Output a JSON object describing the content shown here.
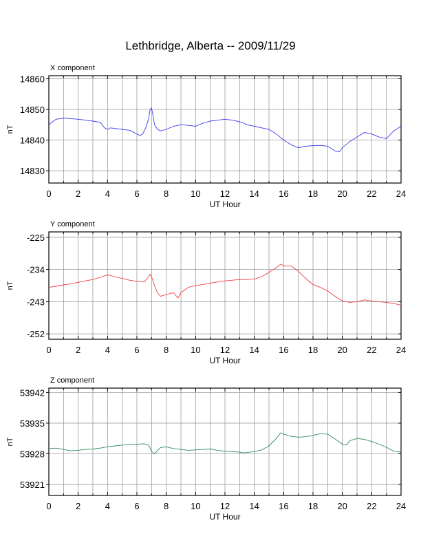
{
  "figure": {
    "title": "Lethbridge, Alberta -- 2009/11/29"
  },
  "chart_data": [
    {
      "type": "line",
      "panel_label": "X component",
      "xlabel": "UT Hour",
      "ylabel": "nT",
      "xlim": [
        0,
        24
      ],
      "ylim": [
        14826,
        14861
      ],
      "x_ticks": [
        0,
        2,
        4,
        6,
        8,
        10,
        12,
        14,
        16,
        18,
        20,
        22,
        24
      ],
      "y_ticks": [
        14830,
        14840,
        14850,
        14860
      ],
      "grid": true,
      "color": "#3b3bef",
      "series": [
        {
          "x": [
            0,
            0.25,
            0.5,
            0.75,
            1,
            1.5,
            2,
            2.5,
            3,
            3.5,
            3.8,
            4,
            4.2,
            4.5,
            5,
            5.5,
            5.8,
            6,
            6.2,
            6.4,
            6.6,
            6.8,
            6.9,
            7,
            7.1,
            7.2,
            7.4,
            7.6,
            8,
            8.5,
            9,
            9.5,
            10,
            10.5,
            11,
            11.5,
            12,
            12.5,
            13,
            13.3,
            13.5,
            14,
            14.5,
            15,
            15.5,
            16,
            16.5,
            17,
            17.5,
            18,
            18.5,
            19,
            19.5,
            19.8,
            20,
            20.5,
            21,
            21.5,
            22,
            22.5,
            23,
            23.5,
            24
          ],
          "y": [
            14845,
            14846,
            14846.8,
            14847,
            14847.2,
            14847,
            14846.8,
            14846.5,
            14846.2,
            14845.8,
            14844,
            14843.5,
            14844,
            14843.8,
            14843.5,
            14843.2,
            14842.5,
            14842,
            14841.5,
            14842,
            14844,
            14847,
            14850,
            14850.5,
            14848,
            14845,
            14843.5,
            14843,
            14843.5,
            14844.5,
            14845,
            14844.8,
            14844.5,
            14845.5,
            14846.2,
            14846.5,
            14846.8,
            14846.5,
            14846,
            14845.5,
            14845,
            14844.5,
            14844,
            14843.5,
            14842,
            14840,
            14838.5,
            14837.5,
            14838,
            14838.2,
            14838.3,
            14838,
            14836.5,
            14836.2,
            14837.5,
            14839.5,
            14841,
            14842.5,
            14842,
            14841,
            14840.5,
            14843,
            14844.5
          ]
        }
      ]
    },
    {
      "type": "line",
      "panel_label": "Y component",
      "xlabel": "UT Hour",
      "ylabel": "nT",
      "xlim": [
        0,
        24
      ],
      "ylim": [
        -253.5,
        -223.5
      ],
      "x_ticks": [
        0,
        2,
        4,
        6,
        8,
        10,
        12,
        14,
        16,
        18,
        20,
        22,
        24
      ],
      "y_ticks": [
        -225,
        -234,
        -243,
        -252
      ],
      "grid": true,
      "color": "#ef3b3b",
      "series": [
        {
          "x": [
            0,
            0.5,
            1,
            1.5,
            2,
            2.5,
            3,
            3.5,
            4,
            4.5,
            5,
            5.5,
            6,
            6.5,
            6.8,
            6.9,
            7,
            7.2,
            7.4,
            7.6,
            8,
            8.5,
            8.8,
            9,
            9.5,
            10,
            10.5,
            11,
            11.5,
            12,
            12.5,
            13,
            13.5,
            14,
            14.5,
            15,
            15.5,
            15.8,
            16,
            16.5,
            17,
            17.5,
            18,
            18.5,
            19,
            19.5,
            20,
            20.5,
            21,
            21.5,
            22,
            22.5,
            23,
            23.5,
            24
          ],
          "y": [
            -239,
            -238.7,
            -238.3,
            -238,
            -237.6,
            -237.2,
            -236.8,
            -236.2,
            -235.5,
            -236,
            -236.5,
            -237,
            -237.3,
            -237.5,
            -236,
            -235.3,
            -236,
            -238.5,
            -240.5,
            -241.5,
            -241,
            -240.5,
            -242,
            -240.5,
            -239,
            -238.5,
            -238.2,
            -237.8,
            -237.5,
            -237.2,
            -237,
            -236.8,
            -236.8,
            -236.7,
            -236,
            -234.8,
            -233.5,
            -232.5,
            -233,
            -233,
            -234.5,
            -236.5,
            -238.2,
            -239,
            -240,
            -241.5,
            -242.8,
            -243.2,
            -243,
            -242.5,
            -242.8,
            -243,
            -243.2,
            -243.5,
            -244
          ]
        }
      ]
    },
    {
      "type": "line",
      "panel_label": "Z component",
      "xlabel": "UT Hour",
      "ylabel": "nT",
      "xlim": [
        0,
        24
      ],
      "ylim": [
        53918.5,
        53943
      ],
      "x_ticks": [
        0,
        2,
        4,
        6,
        8,
        10,
        12,
        14,
        16,
        18,
        20,
        22,
        24
      ],
      "y_ticks": [
        53921,
        53928,
        53935,
        53942
      ],
      "grid": true,
      "color": "#2e8b57",
      "series": [
        {
          "x": [
            0,
            0.5,
            1,
            1.5,
            2,
            2.5,
            3,
            3.5,
            4,
            4.5,
            5,
            5.5,
            6,
            6.5,
            6.8,
            7,
            7.2,
            7.4,
            7.6,
            8,
            8.5,
            9,
            9.5,
            10,
            10.5,
            11,
            11.5,
            12,
            12.5,
            13,
            13.3,
            13.5,
            14,
            14.5,
            15,
            15.5,
            15.8,
            16,
            16.5,
            17,
            17.5,
            18,
            18.5,
            19,
            19.5,
            20,
            20.3,
            20.5,
            21,
            21.5,
            22,
            22.5,
            23,
            23.5,
            24
          ],
          "y": [
            53929.2,
            53929.3,
            53929,
            53928.7,
            53928.8,
            53929,
            53929.1,
            53929.3,
            53929.6,
            53929.8,
            53930,
            53930.1,
            53930.2,
            53930.3,
            53930,
            53928.6,
            53928,
            53928.7,
            53929.4,
            53929.6,
            53929.2,
            53929,
            53928.8,
            53928.9,
            53929,
            53929.1,
            53928.8,
            53928.6,
            53928.5,
            53928.4,
            53928.2,
            53928.3,
            53928.5,
            53928.9,
            53929.8,
            53931.5,
            53932.8,
            53932.5,
            53932,
            53931.8,
            53931.9,
            53932.2,
            53932.6,
            53932.5,
            53931.4,
            53930.2,
            53930,
            53931,
            53931.5,
            53931.3,
            53930.8,
            53930.2,
            53929.5,
            53928.6,
            53928.4
          ]
        }
      ]
    }
  ]
}
